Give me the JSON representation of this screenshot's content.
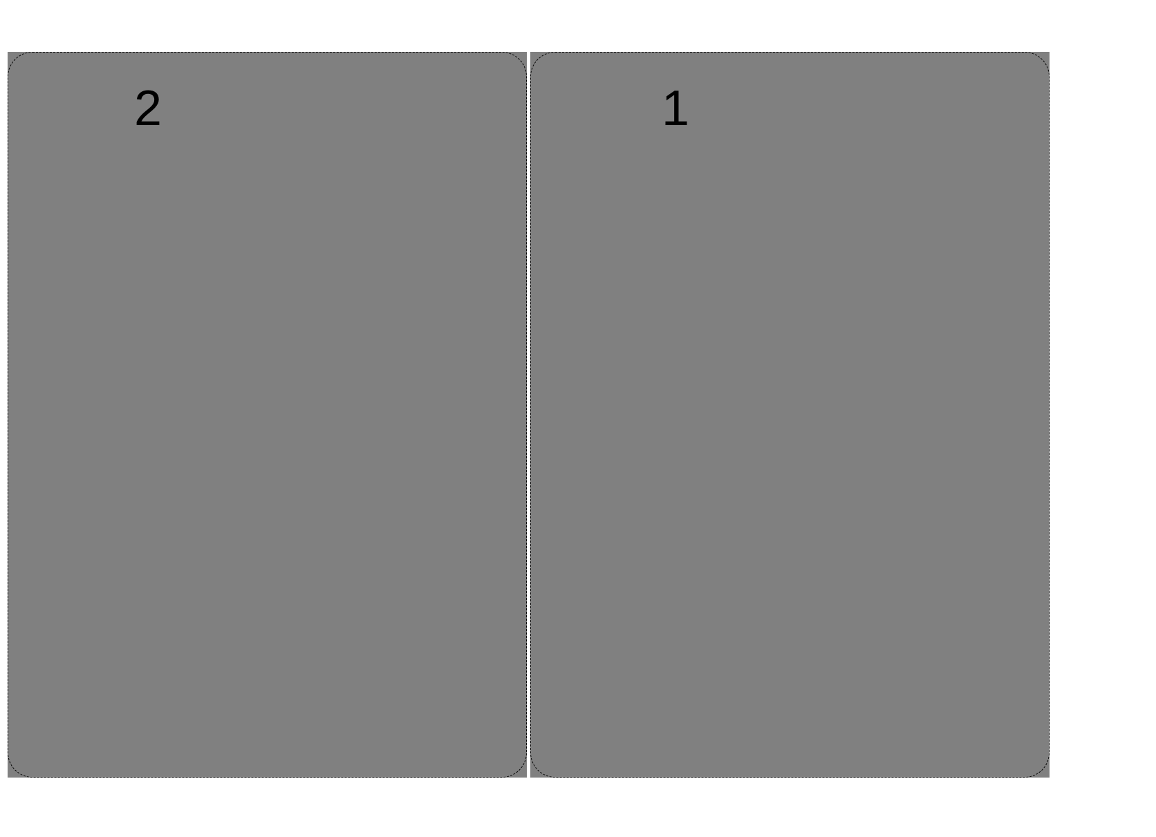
{
  "panels": [
    {
      "label": "2",
      "color": "#808080"
    },
    {
      "label": "1",
      "color": "#808080"
    }
  ]
}
